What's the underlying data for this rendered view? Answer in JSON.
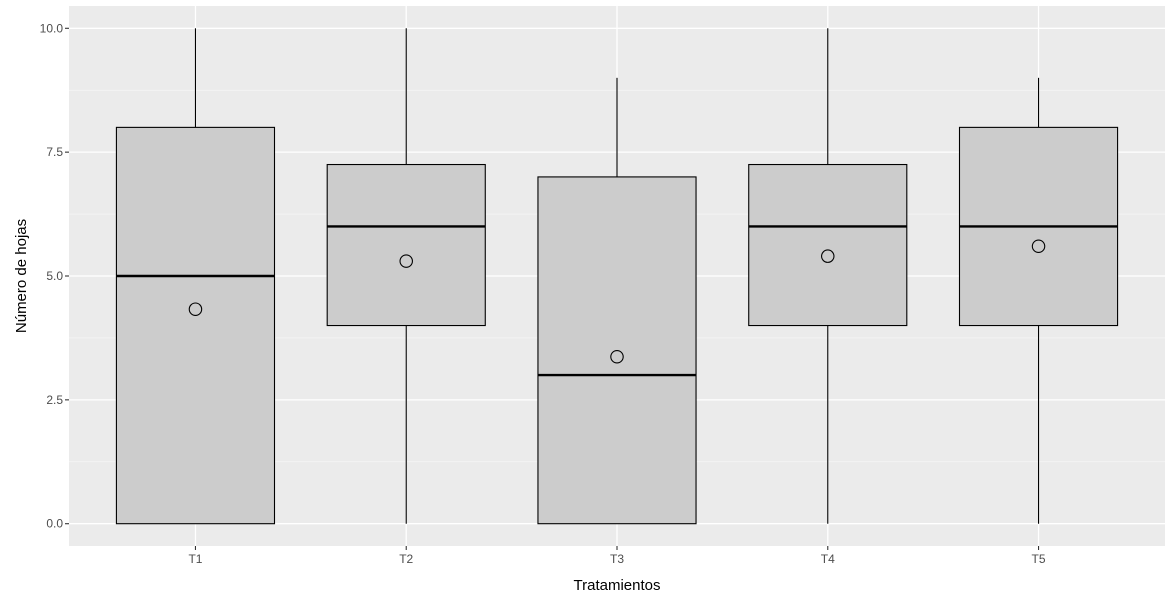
{
  "chart_data": {
    "type": "boxplot",
    "title": "",
    "xlabel": "Tratamientos",
    "ylabel": "Número de hojas",
    "ylim": [
      -0.45,
      10.45
    ],
    "y_ticks": [
      0.0,
      2.5,
      5.0,
      7.5,
      10.0
    ],
    "y_tick_labels": [
      "0.0",
      "2.5",
      "5.0",
      "7.5",
      "10.0"
    ],
    "categories": [
      "T1",
      "T2",
      "T3",
      "T4",
      "T5"
    ],
    "boxes": [
      {
        "category": "T1",
        "min": 0,
        "q1": 0,
        "median": 5,
        "q3": 8,
        "max": 10,
        "mean": 4.33
      },
      {
        "category": "T2",
        "min": 0,
        "q1": 4,
        "median": 6,
        "q3": 7.25,
        "max": 10,
        "mean": 5.3
      },
      {
        "category": "T3",
        "min": 0,
        "q1": 0,
        "median": 3,
        "q3": 7,
        "max": 9,
        "mean": 3.37
      },
      {
        "category": "T4",
        "min": 0,
        "q1": 4,
        "median": 6,
        "q3": 7.25,
        "max": 10,
        "mean": 5.4
      },
      {
        "category": "T5",
        "min": 0,
        "q1": 4,
        "median": 6,
        "q3": 8,
        "max": 9,
        "mean": 5.6
      }
    ],
    "grid": true,
    "legend": "none",
    "colors": {
      "panel_background": "#ebebeb",
      "grid_major": "#ffffff",
      "grid_minor": "#f5f5f5",
      "box_fill": "#cccccc",
      "box_stroke": "#000000",
      "mean_marker_stroke": "#000000"
    },
    "mean_marker": "open-circle"
  }
}
